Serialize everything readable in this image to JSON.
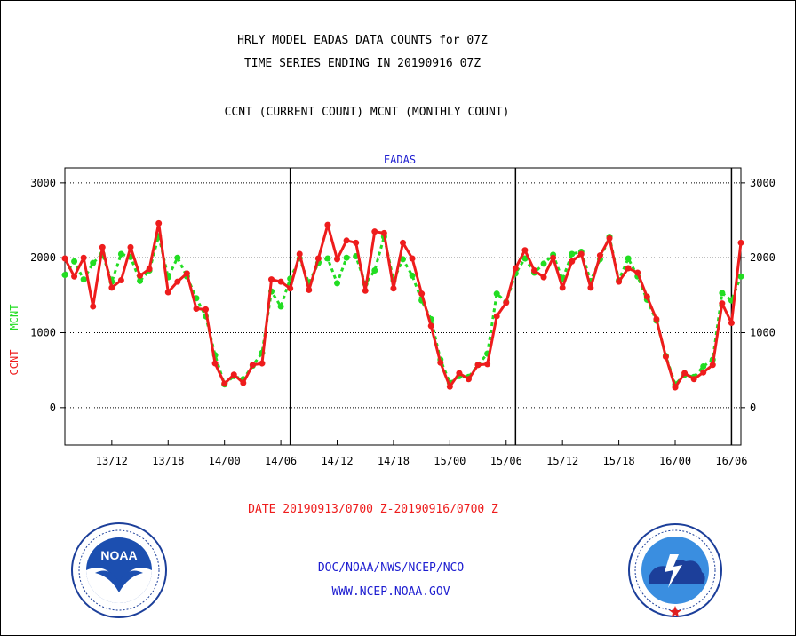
{
  "header": {
    "title_line1": "HRLY MODEL EADAS DATA COUNTS for 07Z",
    "title_line2": "TIME SERIES ENDING IN 20190916 07Z",
    "subtitle": "CCNT (CURRENT COUNT) MCNT (MONTHLY COUNT)"
  },
  "footer": {
    "date_range": "DATE 20190913/0700 Z-20190916/0700 Z",
    "org": "DOC/NOAA/NWS/NCEP/NCO",
    "url": "WWW.NCEP.NOAA.GOV"
  },
  "logos": {
    "noaa_text": "NOAA",
    "nws_icon": "national-weather-service-logo",
    "noaa_icon": "noaa-logo"
  },
  "colors": {
    "ccnt": "#ee1c1c",
    "mcnt": "#22dd22",
    "top_label": "#1c1cd0",
    "footer_blue": "#1c1cd0",
    "date_red": "#ee1c1c"
  },
  "chart_data": {
    "type": "line",
    "title": "EADAS",
    "ylabel_left": [
      "CCNT",
      "MCNT"
    ],
    "ylim": [
      -500,
      3200
    ],
    "yticks": [
      0,
      1000,
      2000,
      3000
    ],
    "y_gridlines": [
      0,
      1000,
      2000,
      3000
    ],
    "x_start": "13/07",
    "x_end": "16/07",
    "x_hours_start": 7,
    "x_hours_end": 79,
    "xticks": [
      {
        "hour": 12,
        "label": "13/12"
      },
      {
        "hour": 18,
        "label": "13/18"
      },
      {
        "hour": 24,
        "label": "14/00"
      },
      {
        "hour": 30,
        "label": "14/06"
      },
      {
        "hour": 36,
        "label": "14/12"
      },
      {
        "hour": 42,
        "label": "14/18"
      },
      {
        "hour": 48,
        "label": "15/00"
      },
      {
        "hour": 54,
        "label": "15/06"
      },
      {
        "hour": 60,
        "label": "15/12"
      },
      {
        "hour": 66,
        "label": "15/18"
      },
      {
        "hour": 72,
        "label": "16/00"
      },
      {
        "hour": 78,
        "label": "16/06"
      }
    ],
    "day_separators": [
      31,
      55,
      78
    ],
    "series": [
      {
        "name": "CCNT",
        "values": [
          1990,
          1750,
          2000,
          1350,
          2140,
          1600,
          1700,
          2140,
          1760,
          1850,
          2460,
          1540,
          1680,
          1790,
          1320,
          1310,
          590,
          320,
          440,
          330,
          570,
          590,
          1710,
          1680,
          1590,
          2050,
          1570,
          1990,
          2440,
          1980,
          2230,
          2200,
          1560,
          2350,
          2330,
          1590,
          2200,
          1990,
          1520,
          1090,
          600,
          280,
          460,
          380,
          570,
          580,
          1220,
          1400,
          1860,
          2100,
          1830,
          1740,
          2000,
          1600,
          1950,
          2050,
          1600,
          2030,
          2260,
          1680,
          1860,
          1800,
          1480,
          1180,
          680,
          270,
          460,
          380,
          470,
          570,
          1390,
          1130,
          2200
        ]
      },
      {
        "name": "MCNT",
        "values": [
          1770,
          1950,
          1710,
          1930,
          2050,
          1680,
          2050,
          2010,
          1690,
          1830,
          2290,
          1740,
          2000,
          1750,
          1460,
          1220,
          700,
          310,
          420,
          380,
          560,
          730,
          1550,
          1350,
          1720,
          1990,
          1660,
          1930,
          1990,
          1660,
          2000,
          2020,
          1650,
          1830,
          2280,
          1700,
          1980,
          1760,
          1430,
          1180,
          640,
          330,
          420,
          410,
          570,
          720,
          1520,
          1410,
          1790,
          1990,
          1800,
          1920,
          2040,
          1710,
          2050,
          2080,
          1690,
          1980,
          2280,
          1700,
          1990,
          1750,
          1440,
          1160,
          690,
          310,
          440,
          410,
          550,
          640,
          1530,
          1430,
          1750
        ]
      }
    ]
  }
}
